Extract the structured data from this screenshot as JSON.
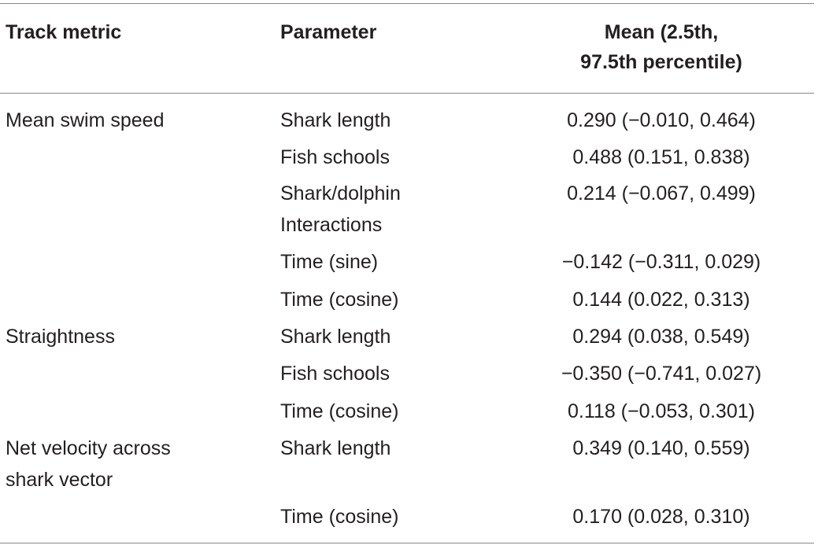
{
  "table": {
    "headers": {
      "metric": "Track metric",
      "parameter": "Parameter",
      "mean_line1": "Mean (2.5th,",
      "mean_line2": "97.5th percentile)"
    },
    "rows": [
      {
        "metric": "Mean swim speed",
        "parameter": "Shark length",
        "mean": "0.290 (−0.010, 0.464)"
      },
      {
        "metric": "",
        "parameter": "Fish schools",
        "mean": "0.488 (0.151, 0.838)"
      },
      {
        "metric": "",
        "parameter": "Shark/dolphin",
        "parameter_line2": "Interactions",
        "mean": "0.214 (−0.067, 0.499)"
      },
      {
        "metric": "",
        "parameter": "Time (sine)",
        "mean": "−0.142 (−0.311, 0.029)"
      },
      {
        "metric": "",
        "parameter": "Time (cosine)",
        "mean": "0.144 (0.022, 0.313)"
      },
      {
        "metric": "Straightness",
        "parameter": "Shark length",
        "mean": "0.294 (0.038, 0.549)"
      },
      {
        "metric": "",
        "parameter": "Fish schools",
        "mean": "−0.350 (−0.741, 0.027)"
      },
      {
        "metric": "",
        "parameter": "Time (cosine)",
        "mean": "0.118 (−0.053, 0.301)"
      },
      {
        "metric": "Net velocity across",
        "metric_line2": "shark vector",
        "parameter": "Shark length",
        "mean": "0.349 (0.140, 0.559)"
      },
      {
        "metric": "",
        "parameter": "Time (cosine)",
        "mean": "0.170 (0.028, 0.310)"
      }
    ]
  }
}
